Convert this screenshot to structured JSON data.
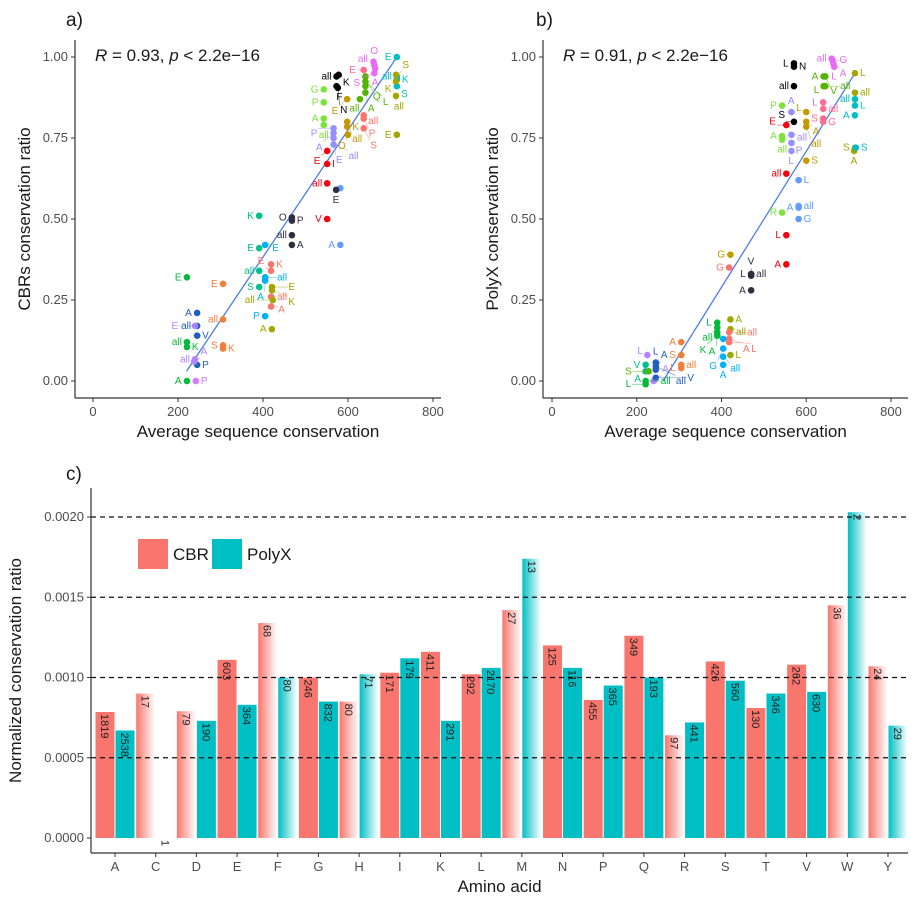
{
  "chart_data": [
    {
      "type": "scatter",
      "panel_label": "a)",
      "annotation": {
        "r_label": "R",
        "r_text": " = 0.93, ",
        "p_label": "p",
        "p_text": " < 2.2e−16"
      },
      "xlabel": "Average sequence conservation",
      "ylabel": "CBRs conservation ratio",
      "xlim": [
        0,
        800
      ],
      "ylim": [
        0,
        1
      ],
      "xticks": [
        "0",
        "200",
        "400",
        "600",
        "800"
      ],
      "yticks": [
        "0.00",
        "0.25",
        "0.50",
        "0.75",
        "1.00"
      ],
      "grid": false,
      "regression_line": {
        "x": [
          220,
          715
        ],
        "y": [
          0.03,
          1.0
        ],
        "color": "#4F7BE8"
      },
      "points": [
        [
          715,
          1.0,
          "E",
          "#00BFC4"
        ],
        [
          715,
          0.94,
          "all",
          "#00BFC4"
        ],
        [
          715,
          0.93,
          "K",
          "#00BFC4"
        ],
        [
          715,
          0.91,
          "S",
          "#00BFC4"
        ],
        [
          713,
          0.945,
          "S",
          "#A3A500"
        ],
        [
          713,
          0.925,
          "K",
          "#A3A500"
        ],
        [
          713,
          0.88,
          "all",
          "#A3A500"
        ],
        [
          715,
          0.76,
          "E",
          "#A3A500"
        ],
        [
          660,
          0.985,
          "all",
          "#E76BF3"
        ],
        [
          662,
          0.975,
          "O",
          "#E76BF3"
        ],
        [
          664,
          0.965,
          "A",
          "#E76BF3"
        ],
        [
          662,
          0.95,
          "S",
          "#E76BF3"
        ],
        [
          637,
          0.96,
          "E",
          "#FF6C91"
        ],
        [
          573,
          0.94,
          "all",
          "#000000"
        ],
        [
          578,
          0.945,
          "K",
          "#000000"
        ],
        [
          573,
          0.91,
          "F",
          "#000000"
        ],
        [
          576,
          0.905,
          "N",
          "#000000"
        ],
        [
          543,
          0.9,
          "G",
          "#7CE33B"
        ],
        [
          543,
          0.86,
          "P",
          "#7CE33B"
        ],
        [
          543,
          0.81,
          "A",
          "#7CE33B"
        ],
        [
          543,
          0.79,
          "all",
          "#7CE33B"
        ],
        [
          641,
          0.94,
          "Q",
          "#53B400"
        ],
        [
          641,
          0.925,
          "L",
          "#53B400"
        ],
        [
          641,
          0.91,
          "A",
          "#53B400"
        ],
        [
          641,
          0.89,
          "",
          "#53B400"
        ],
        [
          628,
          0.87,
          "all",
          "#53B400"
        ],
        [
          598,
          0.87,
          "E",
          "#C49A00"
        ],
        [
          598,
          0.8,
          "all",
          "#C49A00"
        ],
        [
          598,
          0.785,
          "O",
          "#C49A00"
        ],
        [
          600,
          0.76,
          "K",
          "#C49A00"
        ],
        [
          566,
          0.78,
          "P",
          "#9590FF"
        ],
        [
          566,
          0.765,
          "A",
          "#9590FF"
        ],
        [
          566,
          0.75,
          "E",
          "#9590FF"
        ],
        [
          566,
          0.73,
          "all",
          "#9590FF"
        ],
        [
          637,
          0.82,
          "all",
          "#F8766D"
        ],
        [
          637,
          0.81,
          "P",
          "#F8766D"
        ],
        [
          637,
          0.78,
          "S",
          "#F8766D"
        ],
        [
          551,
          0.71,
          "E",
          "#F8000F"
        ],
        [
          551,
          0.67,
          "I",
          "#F8000F"
        ],
        [
          551,
          0.61,
          "all",
          "#F8000F"
        ],
        [
          551,
          0.5,
          "V",
          "#F8000F"
        ],
        [
          582,
          0.595,
          "",
          "#619CFF"
        ],
        [
          572,
          0.59,
          "E",
          "#2F2F3F"
        ],
        [
          582,
          0.42,
          "A",
          "#619CFF"
        ],
        [
          391,
          0.51,
          "K",
          "#00C08B"
        ],
        [
          391,
          0.41,
          "E",
          "#00C08B"
        ],
        [
          391,
          0.34,
          "all",
          "#00C08B"
        ],
        [
          391,
          0.29,
          "S",
          "#00C08B"
        ],
        [
          468,
          0.505,
          "O",
          "#2F2F3F"
        ],
        [
          468,
          0.495,
          "P",
          "#2F2F3F"
        ],
        [
          468,
          0.45,
          "all",
          "#2F2F3F"
        ],
        [
          468,
          0.42,
          "A",
          "#2F2F3F"
        ],
        [
          405,
          0.42,
          "E",
          "#00B0F6"
        ],
        [
          405,
          0.32,
          "all",
          "#00B0F6"
        ],
        [
          405,
          0.31,
          "A",
          "#00B0F6"
        ],
        [
          405,
          0.2,
          "P",
          "#00B0F6"
        ],
        [
          419,
          0.36,
          "K",
          "#F8766D"
        ],
        [
          419,
          0.34,
          "E",
          "#F8766D"
        ],
        [
          419,
          0.26,
          "all",
          "#F8766D"
        ],
        [
          419,
          0.23,
          "A",
          "#F8766D"
        ],
        [
          421,
          0.29,
          "E",
          "#A3A500"
        ],
        [
          421,
          0.28,
          "K",
          "#A3A500"
        ],
        [
          423,
          0.25,
          "all",
          "#A3A500"
        ],
        [
          421,
          0.16,
          "A",
          "#A3A500"
        ],
        [
          221,
          0.32,
          "E",
          "#00BA38"
        ],
        [
          221,
          0.12,
          "all",
          "#00BA38"
        ],
        [
          221,
          0.105,
          "K",
          "#00BA38"
        ],
        [
          221,
          0.0,
          "A",
          "#00BA38"
        ],
        [
          306,
          0.3,
          "E",
          "#F07F3C"
        ],
        [
          306,
          0.19,
          "all",
          "#F07F3C"
        ],
        [
          306,
          0.11,
          "S",
          "#F07F3C"
        ],
        [
          306,
          0.1,
          "K",
          "#F07F3C"
        ],
        [
          245,
          0.21,
          "A",
          "#1F5FBF"
        ],
        [
          245,
          0.17,
          "all",
          "#1F5FBF"
        ],
        [
          245,
          0.14,
          "V",
          "#1F5FBF"
        ],
        [
          245,
          0.05,
          "P",
          "#1F5FBF"
        ],
        [
          240,
          0.17,
          "E",
          "#B385FF"
        ],
        [
          240,
          0.067,
          "all",
          "#B385FF"
        ],
        [
          238,
          0.06,
          "A",
          "#B385FF"
        ],
        [
          242,
          0.0,
          "P",
          "#D77BF6"
        ]
      ]
    },
    {
      "type": "scatter",
      "panel_label": "b)",
      "annotation": {
        "r_label": "R",
        "r_text": " = 0.91, ",
        "p_label": "p",
        "p_text": " < 2.2e−16"
      },
      "xlabel": "Average sequence conservation",
      "ylabel": "PolyX conservation ratio",
      "xlim": [
        0,
        800
      ],
      "ylim": [
        0,
        1
      ],
      "xticks": [
        "0",
        "200",
        "400",
        "600",
        "800"
      ],
      "yticks": [
        "0.00",
        "0.25",
        "0.50",
        "0.75",
        "1.00"
      ],
      "grid": false,
      "regression_line": {
        "x": [
          262,
          715
        ],
        "y": [
          0.0,
          0.95
        ],
        "color": "#4F7BE8"
      },
      "points": [
        [
          571,
          0.98,
          "L",
          "#000000"
        ],
        [
          571,
          0.97,
          "N",
          "#000000"
        ],
        [
          571,
          0.91,
          "all",
          "#000000"
        ],
        [
          571,
          0.8,
          "S",
          "#000000"
        ],
        [
          660,
          0.995,
          "all",
          "#E76BF3"
        ],
        [
          662,
          0.99,
          "G",
          "#E76BF3"
        ],
        [
          664,
          0.98,
          "A",
          "#E76BF3"
        ],
        [
          666,
          0.97,
          "L",
          "#E76BF3"
        ],
        [
          641,
          0.94,
          "A",
          "#53B400"
        ],
        [
          645,
          0.94,
          "V",
          "#53B400"
        ],
        [
          641,
          0.91,
          "L",
          "#53B400"
        ],
        [
          645,
          0.91,
          "all",
          "#53B400"
        ],
        [
          715,
          0.95,
          "L",
          "#A3A500"
        ],
        [
          715,
          0.89,
          "all",
          "#A3A500"
        ],
        [
          715,
          0.72,
          "S",
          "#A3A500"
        ],
        [
          713,
          0.71,
          "A",
          "#A3A500"
        ],
        [
          715,
          0.87,
          "all",
          "#00BFC4"
        ],
        [
          715,
          0.85,
          "L",
          "#00BFC4"
        ],
        [
          715,
          0.82,
          "A",
          "#00BFC4"
        ],
        [
          717,
          0.72,
          "S",
          "#00BFC4"
        ],
        [
          640,
          0.86,
          "L",
          "#FF6C91"
        ],
        [
          640,
          0.84,
          "all",
          "#FF6C91"
        ],
        [
          640,
          0.81,
          "S",
          "#FF6C91"
        ],
        [
          640,
          0.8,
          "G",
          "#FF6C91"
        ],
        [
          543,
          0.85,
          "P",
          "#7CE33B"
        ],
        [
          543,
          0.756,
          "A",
          "#7CE33B"
        ],
        [
          543,
          0.745,
          "all",
          "#7CE33B"
        ],
        [
          543,
          0.52,
          "R",
          "#7CE33B"
        ],
        [
          565,
          0.83,
          "A",
          "#9590FF"
        ],
        [
          565,
          0.76,
          "all",
          "#9590FF"
        ],
        [
          565,
          0.735,
          "P",
          "#9590FF"
        ],
        [
          565,
          0.71,
          "L",
          "#9590FF"
        ],
        [
          600,
          0.83,
          "L",
          "#C49A00"
        ],
        [
          600,
          0.8,
          "A",
          "#C49A00"
        ],
        [
          600,
          0.785,
          "all",
          "#C49A00"
        ],
        [
          600,
          0.68,
          "S",
          "#C49A00"
        ],
        [
          553,
          0.79,
          "E",
          "#F8000F"
        ],
        [
          553,
          0.64,
          "all",
          "#F8000F"
        ],
        [
          553,
          0.45,
          "L",
          "#F8000F"
        ],
        [
          553,
          0.36,
          "A",
          "#F8000F"
        ],
        [
          582,
          0.62,
          "L",
          "#619CFF"
        ],
        [
          582,
          0.54,
          "all",
          "#619CFF"
        ],
        [
          582,
          0.535,
          "A",
          "#619CFF"
        ],
        [
          582,
          0.5,
          "G",
          "#619CFF"
        ],
        [
          421,
          0.39,
          "G",
          "#C49A00"
        ],
        [
          418,
          0.35,
          "G",
          "#F8766D"
        ],
        [
          470,
          0.33,
          "L",
          "#2F2F3F"
        ],
        [
          470,
          0.33,
          "all",
          "#2F2F3F"
        ],
        [
          470,
          0.325,
          "V",
          "#2F2F3F"
        ],
        [
          470,
          0.28,
          "A",
          "#2F2F3F"
        ],
        [
          421,
          0.19,
          "A",
          "#A3A500"
        ],
        [
          421,
          0.16,
          "all",
          "#A3A500"
        ],
        [
          421,
          0.08,
          "L",
          "#A3A500"
        ],
        [
          390,
          0.18,
          "L",
          "#00BA38"
        ],
        [
          390,
          0.165,
          "all",
          "#00BA38"
        ],
        [
          390,
          0.15,
          "A",
          "#00BA38"
        ],
        [
          390,
          0.14,
          "K",
          "#00BA38"
        ],
        [
          418,
          0.15,
          "all",
          "#F8766D"
        ],
        [
          418,
          0.13,
          "A",
          "#F8766D"
        ],
        [
          418,
          0.12,
          "L",
          "#F8766D"
        ],
        [
          404,
          0.13,
          "",
          "#00B0F6"
        ],
        [
          404,
          0.1,
          "G",
          "#00B0F6"
        ],
        [
          404,
          0.075,
          "all",
          "#00B0F6"
        ],
        [
          404,
          0.05,
          "A",
          "#00B0F6"
        ],
        [
          305,
          0.12,
          "A",
          "#F07F3C"
        ],
        [
          305,
          0.08,
          "S",
          "#F07F3C"
        ],
        [
          305,
          0.05,
          "all",
          "#F07F3C"
        ],
        [
          305,
          0.04,
          "L",
          "#F07F3C"
        ],
        [
          221,
          0.05,
          "V",
          "#00C08B"
        ],
        [
          221,
          0.03,
          "A",
          "#00C08B"
        ],
        [
          221,
          0.0,
          "all",
          "#00BA38"
        ],
        [
          221,
          -0.01,
          "L",
          "#00BA38"
        ],
        [
          225,
          0.08,
          "L",
          "#B385FF"
        ],
        [
          240,
          0.0,
          "A",
          "#B385FF"
        ],
        [
          228,
          0.03,
          "S",
          "#53B400"
        ],
        [
          245,
          0.057,
          "L",
          "#1F5FBF"
        ],
        [
          245,
          0.045,
          "all",
          "#1F5FBF"
        ],
        [
          245,
          0.035,
          "A",
          "#1F5FBF"
        ],
        [
          245,
          0.01,
          "V",
          "#1F5FBF"
        ]
      ]
    },
    {
      "type": "bar",
      "panel_label": "c)",
      "xlabel": "Amino acid",
      "ylabel": "Normalized conservation ratio",
      "ylim": [
        0,
        0.0021
      ],
      "yticks": [
        "0.0000",
        "0.0005",
        "0.0010",
        "0.0015",
        "0.0020"
      ],
      "reference_lines": [
        0.0005,
        0.001,
        0.0015,
        0.002
      ],
      "legend_position": "top-left",
      "categories": [
        "A",
        "C",
        "D",
        "E",
        "F",
        "G",
        "H",
        "I",
        "K",
        "L",
        "M",
        "N",
        "P",
        "Q",
        "R",
        "S",
        "T",
        "V",
        "W",
        "Y"
      ],
      "series": [
        {
          "name": "CBR",
          "color": "#F8766D",
          "values": [
            0.000785,
            0.0009,
            0.00079,
            0.00111,
            0.00134,
            0.001,
            0.00085,
            0.00103,
            0.00116,
            0.00102,
            0.00142,
            0.0012,
            0.00086,
            0.00126,
            0.00064,
            0.0011,
            0.00081,
            0.00108,
            0.00145,
            0.00107
          ],
          "counts": [
            "1819",
            "17",
            "79",
            "603",
            "68",
            "246",
            "80",
            "171",
            "411",
            "292",
            "27",
            "125",
            "455",
            "349",
            "97",
            "426",
            "130",
            "262",
            "36",
            "24"
          ]
        },
        {
          "name": "PolyX",
          "color": "#00BFC4",
          "values": [
            0.00067,
            0.0,
            0.00073,
            0.00083,
            0.001,
            0.00085,
            0.00102,
            0.00112,
            0.00073,
            0.00106,
            0.00174,
            0.00106,
            0.00095,
            0.001,
            0.00072,
            0.00098,
            0.0009,
            0.00091,
            0.00203,
            0.0007
          ],
          "counts": [
            "2538",
            "1",
            "190",
            "364",
            "80",
            "832",
            "71",
            "179",
            "291",
            "2170",
            "13",
            "116",
            "365",
            "193",
            "441",
            "560",
            "346",
            "630",
            "2",
            "29"
          ]
        }
      ]
    }
  ]
}
